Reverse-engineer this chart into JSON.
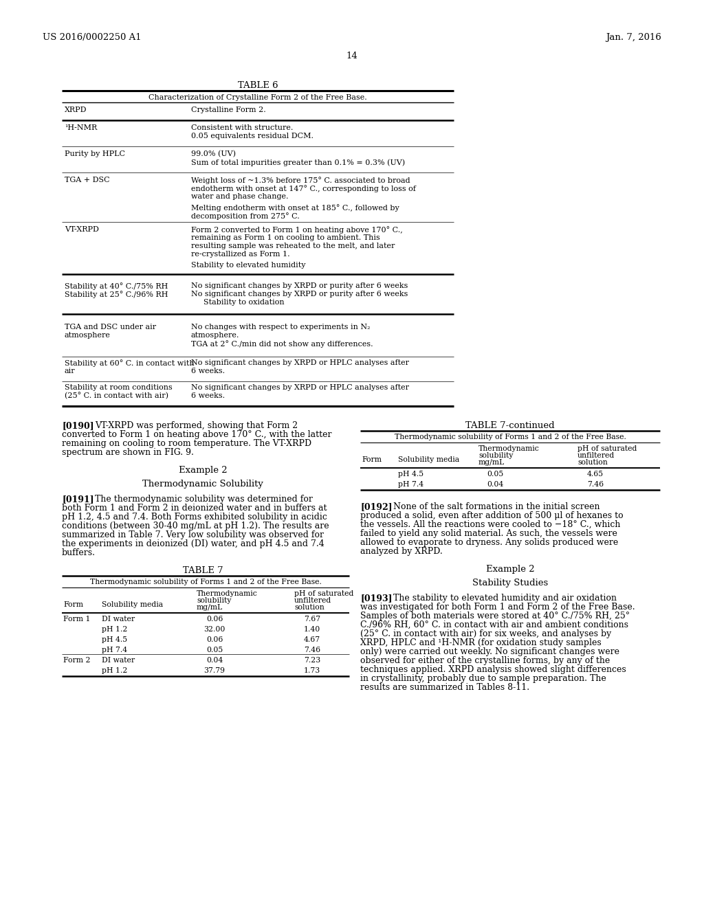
{
  "page_number": "14",
  "patent_number": "US 2016/0002250 A1",
  "patent_date": "Jan. 7, 2016",
  "background_color": "#ffffff",
  "text_color": "#000000",
  "table6_title": "TABLE 6",
  "table6_subtitle": "Characterization of Crystalline Form 2 of the Free Base.",
  "table7_title": "TABLE 7",
  "table7_subtitle": "Thermodynamic solubility of Forms 1 and 2 of the Free Base.",
  "table7c_title": "TABLE 7-continued",
  "table7c_subtitle": "Thermodynamic solubility of Forms 1 and 2 of the Free Base.",
  "table7_headers": [
    "Form",
    "Solubility media",
    "Thermodynamic\nsolubility\nmg/mL",
    "pH of saturated\nunfiltered\nsolution"
  ],
  "table7_rows": [
    [
      "Form 1",
      "DI water",
      "0.06",
      "7.67"
    ],
    [
      "",
      "pH 1.2",
      "32.00",
      "1.40"
    ],
    [
      "",
      "pH 4.5",
      "0.06",
      "4.67"
    ],
    [
      "",
      "pH 7.4",
      "0.05",
      "7.46"
    ],
    [
      "Form 2",
      "DI water",
      "0.04",
      "7.23"
    ],
    [
      "",
      "pH 1.2",
      "37.79",
      "1.73"
    ]
  ],
  "table7c_rows": [
    [
      "",
      "pH 4.5",
      "0.05",
      "4.65"
    ],
    [
      "",
      "pH 7.4",
      "0.04",
      "7.46"
    ]
  ],
  "para_0190": "[0190] VT-XRPD was performed, showing that Form 2\nconverted to Form 1 on heating above 170° C., with the latter\nremaining on cooling to room temperature. The VT-XRPD\nspectrum are shown in FIG. 9.",
  "example2_left": "Example 2",
  "thermodyn_sol": "Thermodynamic Solubility",
  "para_0191": "[0191] The thermodynamic solubility was determined for\nboth Form 1 and Form 2 in deionized water and in buffers at\npH 1.2, 4.5 and 7.4. Both Forms exhibited solubility in acidic\nconditions (between 30-40 mg/mL at pH 1.2). The results are\nsummarized in Table 7. Very low solubility was observed for\nthe experiments in deionized (DI) water, and pH 4.5 and 7.4\nbuffers.",
  "para_0192": "[0192] None of the salt formations in the initial screen\nproduced a solid, even after addition of 500 μl of hexanes to\nthe vessels. All the reactions were cooled to −18° C., which\nfailed to yield any solid material. As such, the vessels were\nallowed to evaporate to dryness. Any solids produced were\nanalyzed by XRPD.",
  "example2_right": "Example 2",
  "stability_studies": "Stability Studies",
  "para_0193": "[0193] The stability to elevated humidity and air oxidation\nwas investigated for both Form 1 and Form 2 of the Free Base.\nSamples of both materials were stored at 40° C./75% RH, 25°\nC./96% RH, 60° C. in contact with air and ambient conditions\n(25° C. in contact with air) for six weeks, and analyses by\nXRPD, HPLC and ¹H-NMR (for oxidation study samples\nonly) were carried out weekly. No significant changes were\nobserved for either of the crystalline forms, by any of the\ntechniques applied. XRPD analysis showed slight differences\nin crystallinity, probably due to sample preparation. The\nresults are summarized in Tables 8-11."
}
